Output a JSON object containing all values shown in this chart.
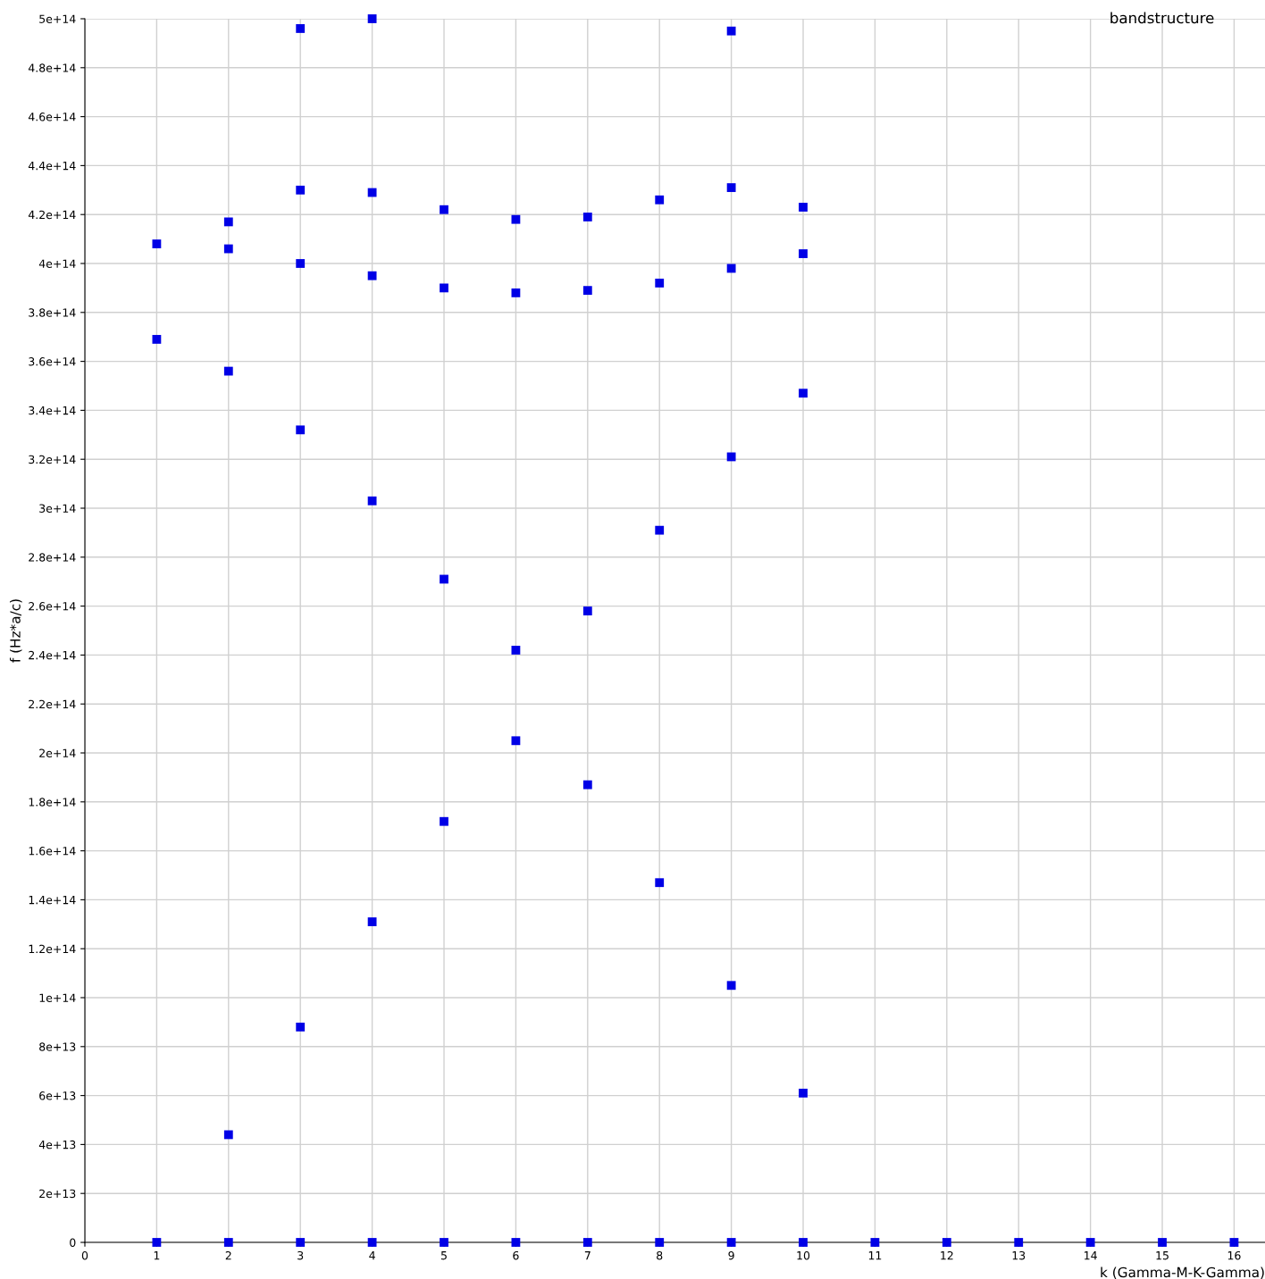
{
  "chart_data": {
    "type": "scatter",
    "title": "bandstructure",
    "xlabel": "k (Gamma-M-K-Gamma)",
    "ylabel": "f (Hz*a/c)",
    "series": [
      {
        "color": "#0000e6",
        "x": [
          1,
          1,
          1,
          2,
          2,
          2,
          2,
          2,
          3,
          3,
          3,
          3,
          3,
          3,
          4,
          4,
          4,
          4,
          4,
          4,
          5,
          5,
          5,
          5,
          5,
          6,
          6,
          6,
          6,
          6,
          7,
          7,
          7,
          7,
          7,
          8,
          8,
          8,
          8,
          8,
          9,
          9,
          9,
          9,
          9,
          9,
          10,
          10,
          10,
          10,
          10,
          11,
          12,
          13,
          14,
          15,
          16
        ],
        "values": [
          408000000000000.0,
          369000000000000.0,
          0,
          417000000000000.0,
          406000000000000.0,
          356000000000000.0,
          44000000000000.0,
          0,
          496000000000000.0,
          430000000000000.0,
          400000000000000.0,
          332000000000000.0,
          88000000000000.0,
          0,
          500000000000000.0,
          429000000000000.0,
          395000000000000.0,
          303000000000000.0,
          131000000000000.0,
          0,
          422000000000000.0,
          390000000000000.0,
          271000000000000.0,
          172000000000000.0,
          0,
          418000000000000.0,
          388000000000000.0,
          242000000000000.0,
          205000000000000.0,
          0,
          419000000000000.0,
          389000000000000.0,
          258000000000000.0,
          187000000000000.0,
          0,
          426000000000000.0,
          392000000000000.0,
          291000000000000.0,
          147000000000000.0,
          0,
          495000000000000.0,
          431000000000000.0,
          398000000000000.0,
          321000000000000.0,
          105000000000000.0,
          0,
          423000000000000.0,
          404000000000000.0,
          347000000000000.0,
          61000000000000.0,
          0,
          0,
          0,
          0,
          0,
          0,
          0
        ]
      }
    ],
    "marker": "square",
    "grid": true,
    "xlim": [
      0,
      16.43
    ],
    "ylim": [
      0,
      500000000000000.0
    ],
    "xticks": [
      0,
      1,
      2,
      3,
      4,
      5,
      6,
      7,
      8,
      9,
      10,
      11,
      12,
      13,
      14,
      15,
      16
    ],
    "yticks": [
      0,
      {
        "value": 20000000000000.0,
        "label": "2e+13"
      },
      {
        "value": 40000000000000.0,
        "label": "4e+13"
      },
      {
        "value": 60000000000000.0,
        "label": "6e+13"
      },
      {
        "value": 80000000000000.0,
        "label": "8e+13"
      },
      {
        "value": 100000000000000.0,
        "label": "1e+14"
      },
      {
        "value": 120000000000000.0,
        "label": "1.2e+14"
      },
      {
        "value": 140000000000000.0,
        "label": "1.4e+14"
      },
      {
        "value": 160000000000000.0,
        "label": "1.6e+14"
      },
      {
        "value": 180000000000000.0,
        "label": "1.8e+14"
      },
      {
        "value": 200000000000000.0,
        "label": "2e+14"
      },
      {
        "value": 220000000000000.0,
        "label": "2.2e+14"
      },
      {
        "value": 240000000000000.0,
        "label": "2.4e+14"
      },
      {
        "value": 260000000000000.0,
        "label": "2.6e+14"
      },
      {
        "value": 280000000000000.0,
        "label": "2.8e+14"
      },
      {
        "value": 300000000000000.0,
        "label": "3e+14"
      },
      {
        "value": 320000000000000.0,
        "label": "3.2e+14"
      },
      {
        "value": 340000000000000.0,
        "label": "3.4e+14"
      },
      {
        "value": 360000000000000.0,
        "label": "3.6e+14"
      },
      {
        "value": 380000000000000.0,
        "label": "3.8e+14"
      },
      {
        "value": 400000000000000.0,
        "label": "4e+14"
      },
      {
        "value": 420000000000000.0,
        "label": "4.2e+14"
      },
      {
        "value": 440000000000000.0,
        "label": "4.4e+14"
      },
      {
        "value": 460000000000000.0,
        "label": "4.6e+14"
      },
      {
        "value": 480000000000000.0,
        "label": "4.8e+14"
      },
      {
        "value": 500000000000000.0,
        "label": "5e+14"
      }
    ]
  }
}
